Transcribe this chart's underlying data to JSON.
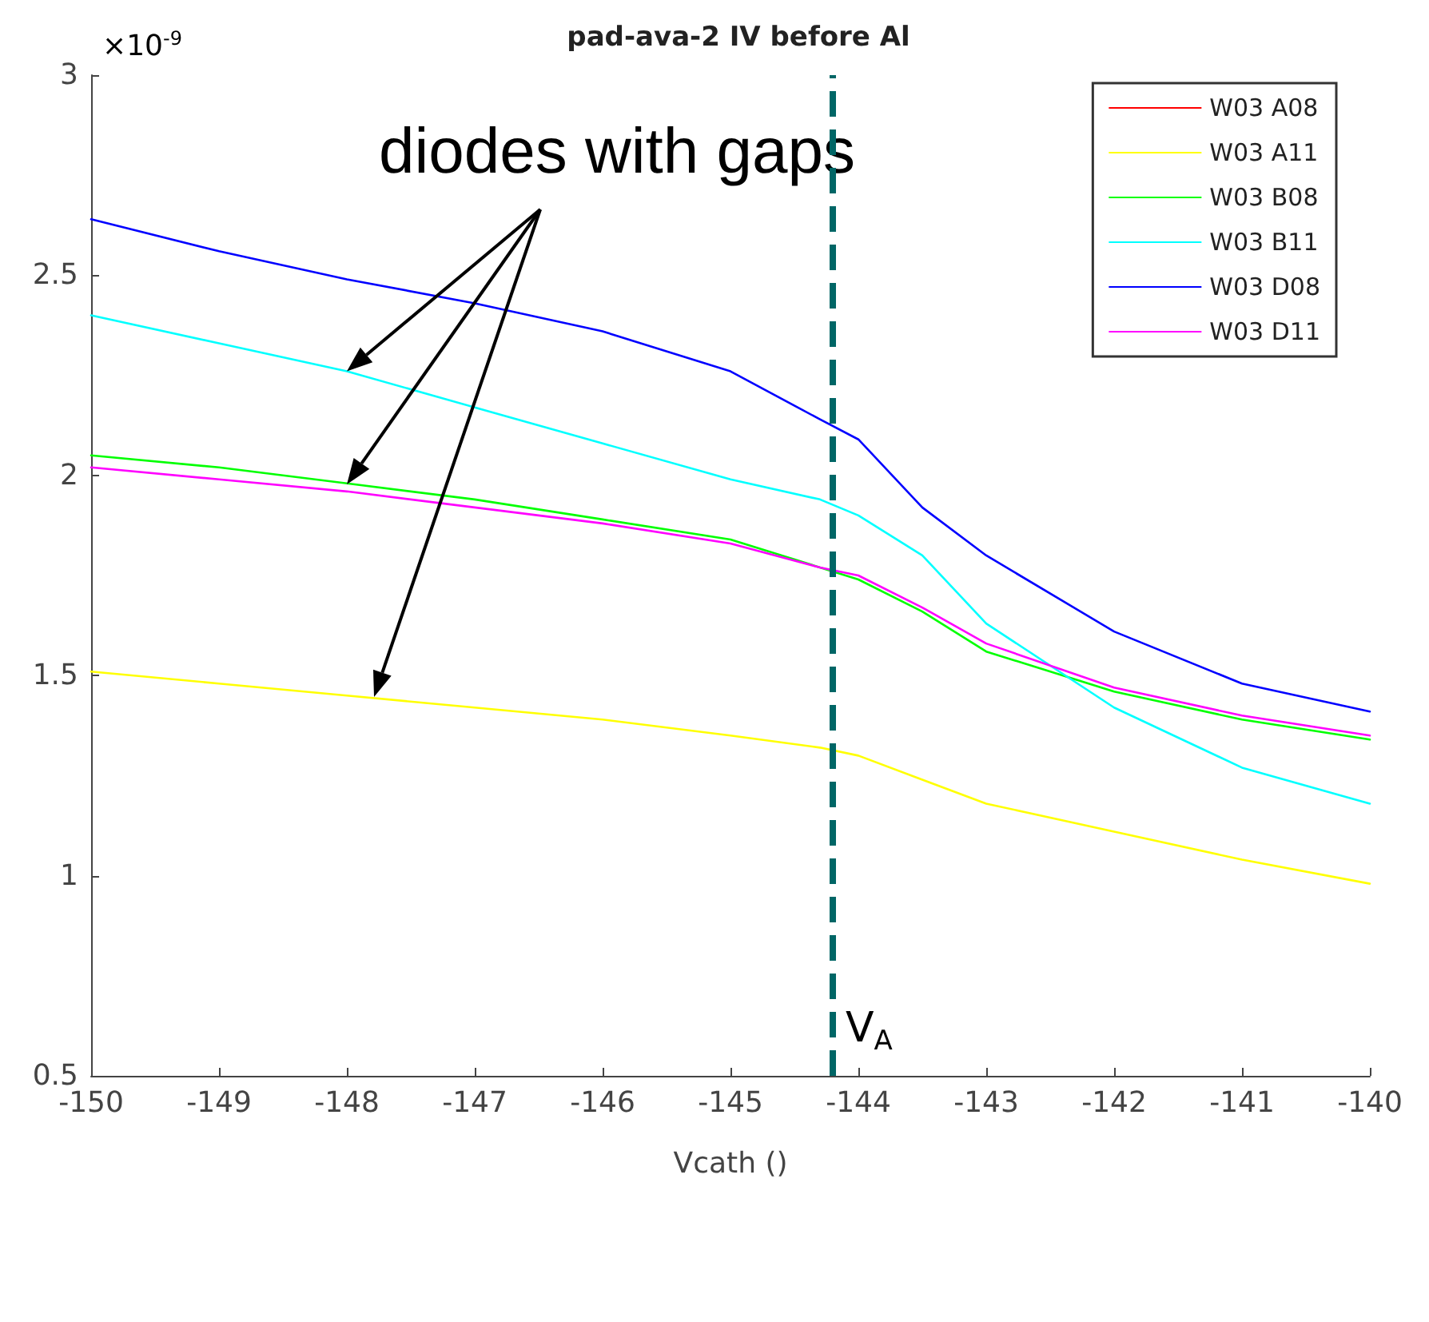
{
  "chart_data": {
    "type": "line",
    "title": "pad-ava-2 IV before Al",
    "xlabel": "Vcath ()",
    "annotations": [
      "×10$^{-9}$",
      {
        "text": "diodes with gaps",
        "x": -148,
        "y": 2.26
      }
    ],
    "x": [
      -150,
      -149,
      -148,
      -147,
      -146,
      -145,
      -144.3,
      -144,
      -143.5,
      -143,
      -142,
      -141,
      -140
    ],
    "series": [
      {
        "name": "W03 A08",
        "color": "#ff0000",
        "values": [
          null,
          null,
          null,
          null,
          null,
          null,
          null,
          null,
          null,
          null,
          null,
          null,
          null
        ]
      },
      {
        "name": "W03 A11",
        "color": "#ffff00",
        "values": [
          1.51,
          1.48,
          1.45,
          1.42,
          1.39,
          1.35,
          1.32,
          1.3,
          1.24,
          1.18,
          1.11,
          1.04,
          0.98
        ]
      },
      {
        "name": "W03 B08",
        "color": "#00ff00",
        "values": [
          2.05,
          2.02,
          1.98,
          1.94,
          1.89,
          1.84,
          1.77,
          1.74,
          1.66,
          1.56,
          1.46,
          1.39,
          1.34
        ]
      },
      {
        "name": "W03 B11",
        "color": "#00ffff",
        "values": [
          2.4,
          2.33,
          2.26,
          2.17,
          2.08,
          1.99,
          1.94,
          1.9,
          1.8,
          1.63,
          1.42,
          1.27,
          1.18
        ]
      },
      {
        "name": "W03 D08",
        "color": "#0000ff",
        "values": [
          2.64,
          2.56,
          2.49,
          2.43,
          2.36,
          2.26,
          2.14,
          2.09,
          1.92,
          1.8,
          1.61,
          1.48,
          1.41
        ]
      },
      {
        "name": "W03 D11",
        "color": "#ff00ff",
        "values": [
          2.02,
          1.99,
          1.96,
          1.92,
          1.88,
          1.83,
          1.77,
          1.75,
          1.67,
          1.58,
          1.47,
          1.4,
          1.35
        ]
      }
    ],
    "xlim": [
      -150,
      -140
    ],
    "xticks": [
      -150,
      -149,
      -148,
      -147,
      -146,
      -145,
      -144,
      -143,
      -142,
      -141,
      -140
    ],
    "ylim": [
      0.5,
      3
    ],
    "yticks": [
      0.5,
      1,
      1.5,
      2,
      2.5,
      3
    ],
    "ref_lines": [
      {
        "axis": "x",
        "value": -144.2,
        "label": "V$_{A}$",
        "color": "#006666",
        "line_style": "dashed"
      }
    ],
    "grid": false,
    "legend": "top right",
    "marker": "none",
    "line_style": "solid"
  }
}
